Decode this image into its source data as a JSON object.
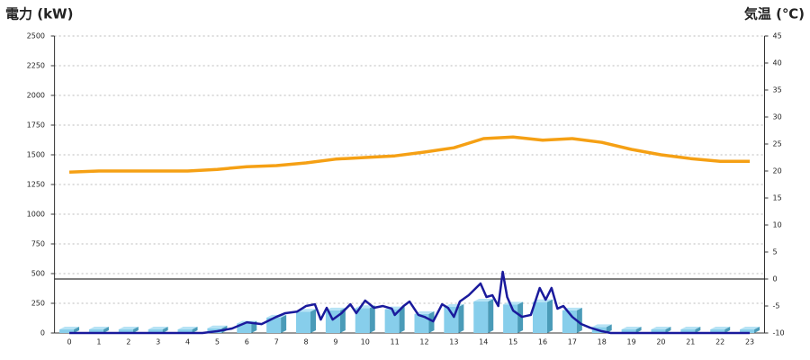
{
  "chart_data": {
    "type": "bar",
    "title": "電力 (kW)",
    "y2_title": "気温 (℃)",
    "title_color": "#1f6fb5",
    "y2_title_color": "#f07c1a",
    "categories": [
      "0",
      "1",
      "2",
      "3",
      "4",
      "5",
      "6",
      "7",
      "8",
      "9",
      "10",
      "11",
      "12",
      "13",
      "14",
      "15",
      "16",
      "17",
      "18",
      "19",
      "20",
      "21",
      "22",
      "23"
    ],
    "ylim": [
      0,
      2500
    ],
    "yticks": [
      0,
      250,
      500,
      750,
      1000,
      1250,
      1500,
      1750,
      2000,
      2250,
      2500
    ],
    "y2lim": [
      -10,
      45
    ],
    "y2ticks": [
      -10,
      -5,
      0,
      5,
      10,
      15,
      20,
      25,
      30,
      35,
      40,
      45
    ],
    "grid": true,
    "series": [
      {
        "type": "bar",
        "color": "#87ceeb",
        "values": [
          30,
          30,
          30,
          30,
          30,
          40,
          80,
          130,
          180,
          190,
          210,
          200,
          160,
          220,
          265,
          240,
          260,
          190,
          50,
          30,
          30,
          30,
          30,
          30
        ]
      },
      {
        "type": "line",
        "color": "#1a1a9c",
        "x": [
          0,
          4.5,
          5,
          5.5,
          6,
          6.5,
          7,
          7.3,
          7.7,
          8,
          8.3,
          8.5,
          8.7,
          8.9,
          9.2,
          9.5,
          9.7,
          10,
          10.3,
          10.6,
          10.9,
          11,
          11.3,
          11.5,
          11.8,
          12,
          12.3,
          12.6,
          12.8,
          13,
          13.2,
          13.5,
          13.9,
          14.1,
          14.3,
          14.5,
          14.65,
          14.8,
          15,
          15.3,
          15.6,
          15.9,
          16.1,
          16.3,
          16.5,
          16.7,
          17,
          17.3,
          17.6,
          18,
          18.3,
          23
        ],
        "values": [
          0,
          0,
          15,
          38,
          90,
          75,
          136,
          167,
          180,
          227,
          242,
          113,
          212,
          113,
          167,
          242,
          167,
          273,
          212,
          227,
          205,
          152,
          227,
          265,
          152,
          136,
          98,
          242,
          212,
          136,
          265,
          318,
          417,
          303,
          318,
          227,
          515,
          303,
          189,
          136,
          152,
          379,
          280,
          379,
          205,
          227,
          136,
          76,
          45,
          15,
          0,
          0
        ]
      },
      {
        "type": "line",
        "axis": "y2",
        "color": "#f5a014",
        "values": [
          19.8,
          20,
          20,
          20,
          20,
          20.3,
          20.8,
          21,
          21.5,
          22.2,
          22.5,
          22.8,
          23.5,
          24.3,
          26,
          26.3,
          25.7,
          26,
          25.3,
          24,
          23,
          22.3,
          21.8,
          21.8
        ]
      }
    ]
  }
}
